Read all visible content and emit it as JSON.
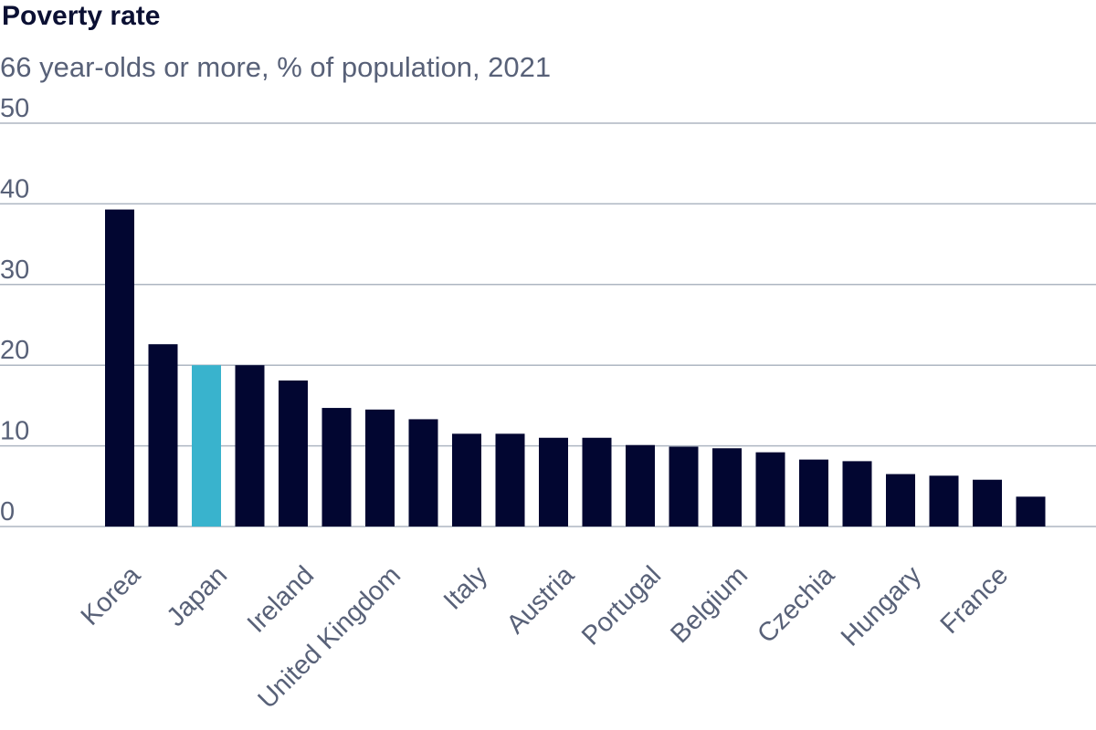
{
  "title": "Poverty rate",
  "subtitle": "66 year-olds or more, % of population, 2021",
  "colors": {
    "bar": "#020631",
    "highlight": "#39b3cd",
    "grid": "#aeb6c2",
    "text": "#586178",
    "title": "#0b1033"
  },
  "chart_data": {
    "type": "bar",
    "title": "Poverty rate",
    "subtitle": "66 year-olds or more, % of population, 2021",
    "xlabel": "",
    "ylabel": "",
    "ylim": [
      0,
      50
    ],
    "yticks": [
      0,
      10,
      20,
      30,
      40,
      50
    ],
    "grid": true,
    "categories": [
      "Korea",
      "",
      "Japan",
      "",
      "Ireland",
      "",
      "United Kingdom",
      "",
      "Italy",
      "",
      "Austria",
      "",
      "Portugal",
      "",
      "Belgium",
      "",
      "Czechia",
      "",
      "Hungary",
      "",
      "France",
      ""
    ],
    "values": [
      39.3,
      22.6,
      20.0,
      20.0,
      18.1,
      14.7,
      14.5,
      13.3,
      11.5,
      11.5,
      11.0,
      11.0,
      10.1,
      9.9,
      9.7,
      9.2,
      8.3,
      8.1,
      6.5,
      6.3,
      5.8,
      3.7
    ],
    "highlight_index": 2
  }
}
